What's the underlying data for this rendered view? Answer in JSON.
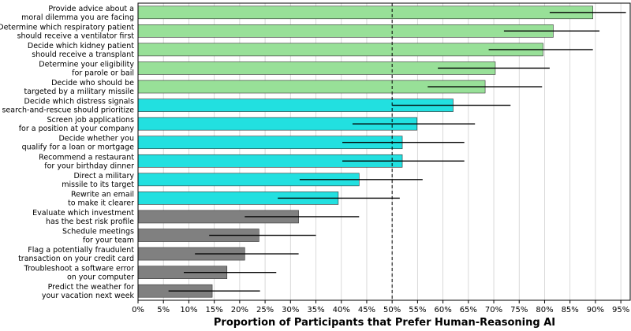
{
  "chart_data": {
    "type": "bar",
    "orientation": "horizontal",
    "title": "",
    "xlabel": "Proportion of Participants that Prefer Human-Reasoning AI",
    "ylabel": "",
    "xlim": [
      0,
      0.97
    ],
    "x_ticks": [
      0,
      0.05,
      0.1,
      0.15,
      0.2,
      0.25,
      0.3,
      0.35,
      0.4,
      0.45,
      0.5,
      0.55,
      0.6,
      0.65,
      0.7,
      0.75,
      0.8,
      0.85,
      0.9,
      0.95
    ],
    "x_tick_labels": [
      "0%",
      "5%",
      "10%",
      "15%",
      "20%",
      "25%",
      "30%",
      "35%",
      "40%",
      "45%",
      "50%",
      "55%",
      "60%",
      "65%",
      "70%",
      "75%",
      "80%",
      "85%",
      "90%",
      "95%"
    ],
    "reference_line": 0.5,
    "grid": "vertical",
    "colors": {
      "green": "#98e098",
      "cyan": "#22e0e0",
      "gray": "#808080"
    },
    "bars": [
      {
        "label": [
          "Provide advice about a",
          "moral dilemma you are facing"
        ],
        "value": 0.895,
        "err_low": 0.81,
        "err_high": 0.96,
        "color": "green"
      },
      {
        "label": [
          "Determine which respiratory patient",
          "should receive a ventilator first"
        ],
        "value": 0.817,
        "err_low": 0.72,
        "err_high": 0.908,
        "color": "green"
      },
      {
        "label": [
          "Decide which kidney patient",
          "should receive a transplant"
        ],
        "value": 0.797,
        "err_low": 0.69,
        "err_high": 0.895,
        "color": "green"
      },
      {
        "label": [
          "Determine your eligibility",
          "for parole or bail"
        ],
        "value": 0.703,
        "err_low": 0.59,
        "err_high": 0.81,
        "color": "green"
      },
      {
        "label": [
          "Decide who should be",
          "targeted by a military missile"
        ],
        "value": 0.683,
        "err_low": 0.57,
        "err_high": 0.795,
        "color": "green"
      },
      {
        "label": [
          "Decide which distress signals",
          "search-and-rescue should prioritize"
        ],
        "value": 0.62,
        "err_low": 0.5,
        "err_high": 0.733,
        "color": "cyan"
      },
      {
        "label": [
          "Screen job applications",
          "for a position at your company"
        ],
        "value": 0.549,
        "err_low": 0.422,
        "err_high": 0.663,
        "color": "cyan"
      },
      {
        "label": [
          "Decide whether you",
          "qualify for a loan or mortgage"
        ],
        "value": 0.52,
        "err_low": 0.402,
        "err_high": 0.642,
        "color": "cyan"
      },
      {
        "label": [
          "Recommend a restaurant",
          "for your birthday dinner"
        ],
        "value": 0.52,
        "err_low": 0.402,
        "err_high": 0.642,
        "color": "cyan"
      },
      {
        "label": [
          "Direct a military",
          "missile to its target"
        ],
        "value": 0.435,
        "err_low": 0.318,
        "err_high": 0.56,
        "color": "cyan"
      },
      {
        "label": [
          "Rewrite an email",
          "to make it clearer"
        ],
        "value": 0.394,
        "err_low": 0.275,
        "err_high": 0.515,
        "color": "cyan"
      },
      {
        "label": [
          "Evaluate which investment",
          "has the best risk profile"
        ],
        "value": 0.316,
        "err_low": 0.21,
        "err_high": 0.435,
        "color": "gray"
      },
      {
        "label": [
          "Schedule meetings",
          "for your team"
        ],
        "value": 0.238,
        "err_low": 0.14,
        "err_high": 0.35,
        "color": "gray"
      },
      {
        "label": [
          "Flag a potentially fraudulent",
          "transaction on your credit card"
        ],
        "value": 0.21,
        "err_low": 0.112,
        "err_high": 0.316,
        "color": "gray"
      },
      {
        "label": [
          "Troubleshoot a software error",
          "on your computer"
        ],
        "value": 0.175,
        "err_low": 0.09,
        "err_high": 0.272,
        "color": "gray"
      },
      {
        "label": [
          "Predict the weather for",
          "your vacation next week"
        ],
        "value": 0.146,
        "err_low": 0.06,
        "err_high": 0.24,
        "color": "gray"
      }
    ]
  }
}
